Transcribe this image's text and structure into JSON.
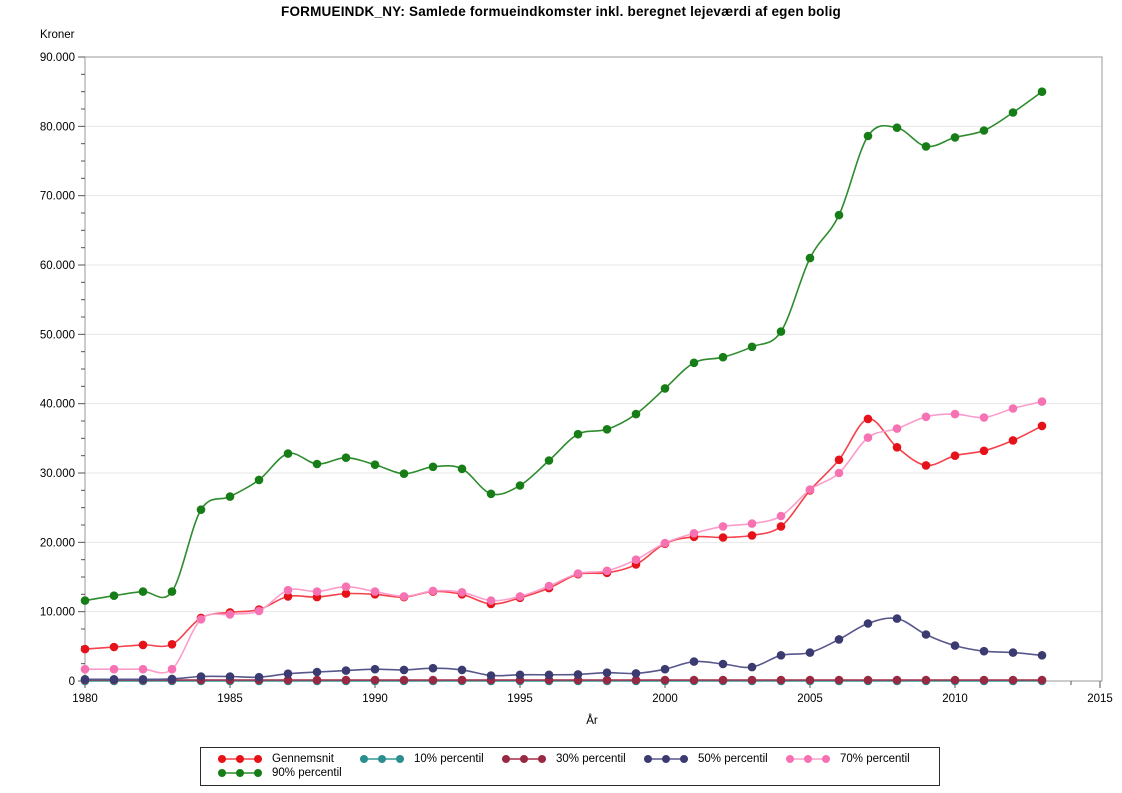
{
  "chart": {
    "title": "FORMUEINDK_NY:  Samlede formueindkomster inkl. beregnet lejeværdi af egen bolig",
    "y_axis_title": "Kroner",
    "x_axis_title": "År"
  },
  "chart_data": {
    "type": "line",
    "title": "FORMUEINDK_NY:  Samlede formueindkomster inkl. beregnet lejeværdi af egen bolig",
    "xlabel": "År",
    "ylabel": "Kroner",
    "x": [
      1980,
      1981,
      1982,
      1983,
      1984,
      1985,
      1986,
      1987,
      1988,
      1989,
      1990,
      1991,
      1992,
      1993,
      1994,
      1995,
      1996,
      1997,
      1998,
      1999,
      2000,
      2001,
      2002,
      2003,
      2004,
      2005,
      2006,
      2007,
      2008,
      2009,
      2010,
      2011,
      2012,
      2013
    ],
    "xlim": [
      1980,
      2015
    ],
    "ylim": [
      0,
      90000
    ],
    "x_tick_interval": 5,
    "x_minor_tick_interval": 1,
    "y_tick_interval": 10000,
    "y_minor_tick_interval": 2500,
    "grid": "horizontal-major-only",
    "legend_position": "bottom",
    "series": [
      {
        "name": "Gennemsnit",
        "line_color": "#f4414b",
        "marker_color": "#e61219",
        "values": [
          4600,
          4900,
          5200,
          5300,
          9100,
          9900,
          10300,
          12200,
          12100,
          12600,
          12500,
          12100,
          12900,
          12500,
          11100,
          12000,
          13400,
          15400,
          15600,
          16800,
          19800,
          20800,
          20700,
          21000,
          22300,
          27500,
          31900,
          37800,
          33700,
          31100,
          32500,
          33200,
          34700,
          36800
        ]
      },
      {
        "name": "10% percentil",
        "line_color": "#2f9899",
        "marker_color": "#2b8e8f",
        "values": [
          0,
          0,
          0,
          0,
          0,
          0,
          0,
          0,
          0,
          0,
          0,
          0,
          0,
          0,
          0,
          0,
          0,
          0,
          0,
          0,
          0,
          0,
          0,
          0,
          0,
          0,
          0,
          0,
          0,
          0,
          0,
          0,
          0,
          0
        ]
      },
      {
        "name": "30% percentil",
        "line_color": "#a52c48",
        "marker_color": "#992842",
        "values": [
          150,
          150,
          150,
          150,
          150,
          150,
          150,
          150,
          150,
          150,
          150,
          150,
          150,
          150,
          150,
          150,
          150,
          150,
          150,
          150,
          150,
          150,
          150,
          150,
          150,
          150,
          150,
          150,
          150,
          150,
          150,
          150,
          150,
          150
        ]
      },
      {
        "name": "50% percentil",
        "line_color": "#57578c",
        "marker_color": "#3b3b71",
        "values": [
          250,
          250,
          250,
          300,
          650,
          650,
          550,
          1050,
          1300,
          1500,
          1700,
          1600,
          1850,
          1600,
          800,
          900,
          900,
          950,
          1200,
          1100,
          1700,
          2800,
          2450,
          2000,
          3700,
          4100,
          6000,
          8300,
          9000,
          6700,
          5100,
          4300,
          4100,
          3700
        ]
      },
      {
        "name": "70% percentil",
        "line_color": "#fb9dcb",
        "marker_color": "#f672b2",
        "values": [
          1700,
          1700,
          1700,
          1700,
          8900,
          9600,
          10100,
          13100,
          12900,
          13600,
          12900,
          12200,
          13000,
          12800,
          11600,
          12200,
          13700,
          15500,
          15900,
          17500,
          19900,
          21300,
          22300,
          22700,
          23800,
          27600,
          30000,
          35100,
          36400,
          38100,
          38500,
          38000,
          39300,
          40300
        ]
      },
      {
        "name": "90% percentil",
        "line_color": "#2d8c2d",
        "marker_color": "#177d17",
        "values": [
          11600,
          12300,
          12900,
          12900,
          24700,
          26600,
          29000,
          32800,
          31300,
          32200,
          31200,
          29900,
          30900,
          30600,
          27000,
          28200,
          31800,
          35600,
          36300,
          38500,
          42200,
          45900,
          46700,
          48200,
          50400,
          61000,
          67200,
          78600,
          79800,
          77100,
          78400,
          79400,
          82000,
          85000
        ]
      }
    ],
    "style": {
      "frame_color": "#9a9a9a",
      "grid_color": "#e7e7e7",
      "tick_color": "#555555",
      "legend_border_color": "#2b2b2b"
    }
  }
}
